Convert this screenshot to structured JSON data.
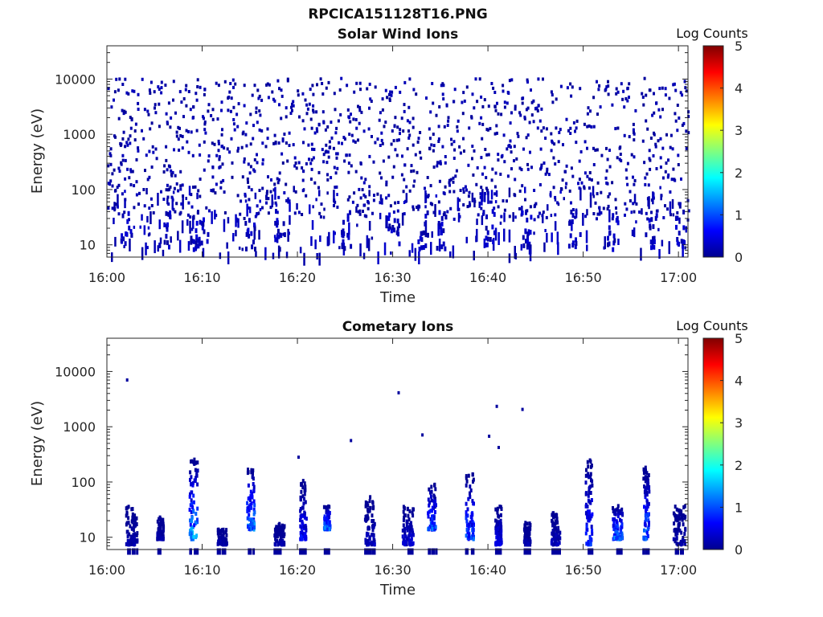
{
  "figure_title": "RPCICA151128T16.PNG",
  "chart_data": [
    {
      "type": "heatmap",
      "title": "Solar Wind Ions",
      "xlabel": "Time",
      "ylabel": "Energy (eV)",
      "x_range": [
        "16:00",
        "17:01"
      ],
      "x_ticks": [
        "16:00",
        "16:10",
        "16:20",
        "16:30",
        "16:40",
        "16:50",
        "17:00"
      ],
      "y_scale": "log",
      "y_range": [
        6,
        40000
      ],
      "y_ticks": [
        10,
        100,
        1000,
        10000
      ],
      "y_tick_labels": [
        "10",
        "100",
        "1000",
        "10000"
      ],
      "colorbar": {
        "label": "Log Counts",
        "range": [
          0,
          5
        ],
        "ticks": [
          "0",
          "1",
          "2",
          "3",
          "4",
          "5"
        ],
        "colormap": "jet"
      },
      "description_of_values": "sparse single-count (log counts ~0-0.5) pixels scattered over 30 eV - 10 keV, denser bursts at 10-40 eV",
      "burst_times_min": [
        2,
        6,
        9,
        10,
        15,
        18,
        25,
        30,
        33,
        35,
        40,
        44,
        49,
        53,
        57,
        60
      ],
      "grid": false,
      "legend": "none"
    },
    {
      "type": "heatmap",
      "title": "Cometary Ions",
      "xlabel": "Time",
      "ylabel": "Energy (eV)",
      "x_range": [
        "16:00",
        "17:01"
      ],
      "x_ticks": [
        "16:00",
        "16:10",
        "16:20",
        "16:30",
        "16:40",
        "16:50",
        "17:00"
      ],
      "y_scale": "log",
      "y_range": [
        6,
        40000
      ],
      "y_ticks": [
        10,
        100,
        1000,
        10000
      ],
      "y_tick_labels": [
        "10",
        "100",
        "1000",
        "10000"
      ],
      "colorbar": {
        "label": "Log Counts",
        "range": [
          0,
          5
        ],
        "ticks": [
          "0",
          "1",
          "2",
          "3",
          "4",
          "5"
        ],
        "colormap": "jet"
      },
      "bursts": [
        {
          "time_min": 2.5,
          "emin": 8,
          "emax": 40,
          "peak_log": 0.3
        },
        {
          "time_min": 5.5,
          "emin": 10,
          "emax": 25,
          "peak_log": 0.3
        },
        {
          "time_min": 9.0,
          "emin": 10,
          "emax": 300,
          "peak_log": 1.8
        },
        {
          "time_min": 12.0,
          "emin": 8,
          "emax": 15,
          "peak_log": 0.3
        },
        {
          "time_min": 15.0,
          "emin": 15,
          "emax": 200,
          "peak_log": 1.6
        },
        {
          "time_min": 18.0,
          "emin": 8,
          "emax": 20,
          "peak_log": 0.3
        },
        {
          "time_min": 20.5,
          "emin": 10,
          "emax": 120,
          "peak_log": 0.8
        },
        {
          "time_min": 23.0,
          "emin": 15,
          "emax": 40,
          "peak_log": 1.7
        },
        {
          "time_min": 27.5,
          "emin": 8,
          "emax": 60,
          "peak_log": 0.4
        },
        {
          "time_min": 31.5,
          "emin": 8,
          "emax": 40,
          "peak_log": 0.5
        },
        {
          "time_min": 34.0,
          "emin": 15,
          "emax": 100,
          "peak_log": 1.3
        },
        {
          "time_min": 38.0,
          "emin": 10,
          "emax": 150,
          "peak_log": 1.3
        },
        {
          "time_min": 41.0,
          "emin": 8,
          "emax": 40,
          "peak_log": 0.7
        },
        {
          "time_min": 44.0,
          "emin": 8,
          "emax": 20,
          "peak_log": 0.3
        },
        {
          "time_min": 47.0,
          "emin": 8,
          "emax": 30,
          "peak_log": 0.4
        },
        {
          "time_min": 50.5,
          "emin": 8,
          "emax": 300,
          "peak_log": 1.0
        },
        {
          "time_min": 53.5,
          "emin": 10,
          "emax": 40,
          "peak_log": 1.5
        },
        {
          "time_min": 56.5,
          "emin": 10,
          "emax": 200,
          "peak_log": 1.4
        },
        {
          "time_min": 60.0,
          "emin": 8,
          "emax": 40,
          "peak_log": 0.3
        }
      ],
      "grid": false,
      "legend": "none"
    }
  ]
}
